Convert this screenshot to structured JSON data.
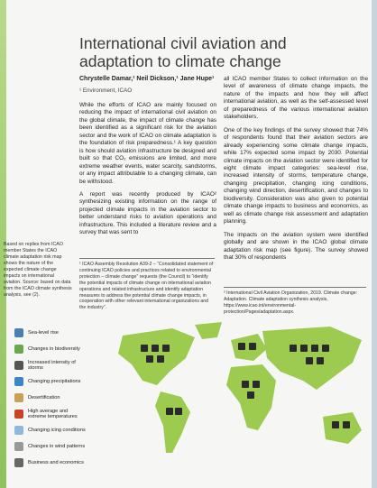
{
  "header": {
    "title": "International civil aviation and adaptation to climate change",
    "authors": "Chrystelle Damar,¹ Neil Dickson,¹ Jane Hupe¹",
    "affiliation": "¹  Environment, ICAO"
  },
  "body": {
    "left": [
      "While the efforts of ICAO are mainly focused on reducing the impact of international civil aviation on the global climate, the impact of climate change has been identified as a significant risk for the aviation sector and the work of ICAO on climate adaptation is the foundation of risk preparedness.¹ A key question is how should aviation infrastructure be designed and built so that CO₂ emissions are limited, and more extreme weather events, water scarcity, sandstorms, or any impact attributable to a changing climate, can be withstood.",
      "A report was recently produced by ICAO² synthesizing existing information on the range of projected climate impacts in the aviation sector to better understand risks to aviation operations and infrastructure. This included a literature review and a survey that was sent to"
    ],
    "right": [
      "all ICAO member States to collect information on the level of awareness of climate change impacts, the nature of the impacts and how they will affect international aviation, as well as the self-assessed level of preparedness of the various international aviation stakeholders.",
      "One of the key findings of the survey showed that 74% of respondents found that their aviation sectors are already experiencing some climate change impacts, while 17% expected some impact by 2030. Potential climate impacts on the aviation sector were identified for eight climate impact categories: sea-level rise, increased intensity of storms, temperature change, changing precipitation, changing icing conditions, changing wind direction, desertification, and changes to biodiversity. Consideration was also given to potential climate change impacts to business and economics, as well as climate change risk assessment and adaptation planning.",
      "The impacts on the aviation system were identified globally and are shown in the ICAO global climate adaptation risk map (see figure). The survey showed that 30% of respondents"
    ]
  },
  "caption": "Based on replies from ICAO member States the ICAO climate adaptation risk map shows the nature of the expected climate change impacts on international aviation. Source: based on data from the ICAO climate synthesis analysis, see (2).",
  "footnotes": [
    "¹  ICAO Assembly Resolution A39-2 – “Consolidated statement of continuing ICAO policies and practices related to environmental protection – climate change” requests (the Council) to “identify the potential impacts of climate change on international aviation operations and related infrastructure and identify adaptation measures to address the potential climate change impacts, in cooperation with other relevant international organizations and the industry”.",
    "²  International Civil Aviation Organization, 2019. Climate change: Adaptation. Climate adaptation synthesis analysis, https://www.icao.int/environmental-protection/Pages/adaptation.aspx."
  ],
  "legend": [
    "Sea-level rise",
    "Changes in biodiversity",
    "Increased intensity of storms",
    "Changing precipitations",
    "Desertification",
    "High average and extreme temperatures",
    "Changing icing conditions",
    "Changes in wind patterns",
    "Business and economics"
  ]
}
